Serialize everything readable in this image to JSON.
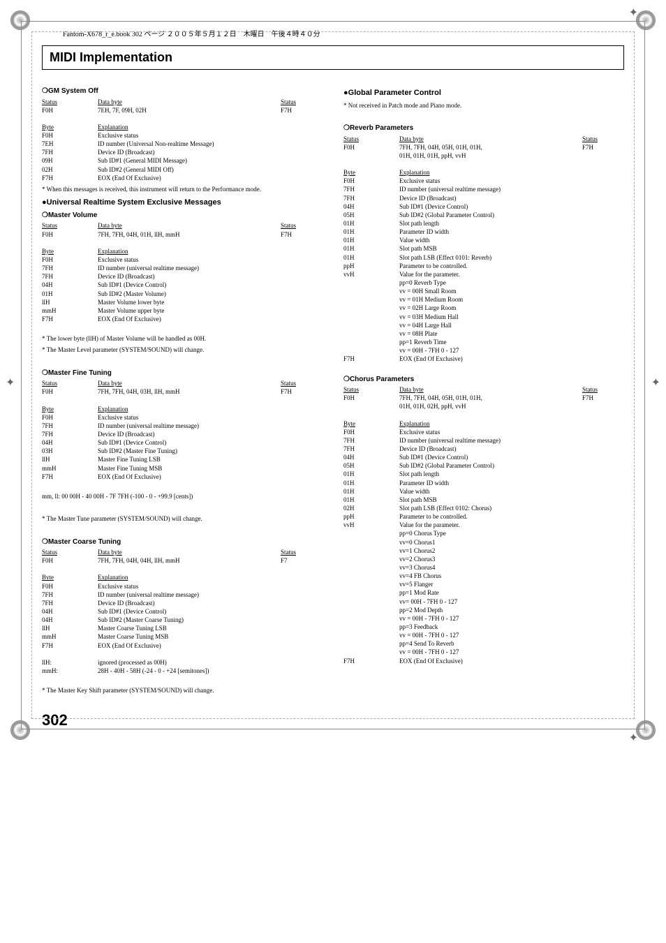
{
  "header_line": "Fantom-X678_r_e.book 302 ページ ２００５年５月１２日　木曜日　午後４時４０分",
  "main_title": "MIDI Implementation",
  "page_number": "302",
  "headers": {
    "status": "Status",
    "data_byte": "Data byte",
    "byte": "Byte",
    "explanation": "Explanation"
  },
  "left": {
    "gm_off": {
      "title": "❍GM System Off",
      "status_row": {
        "c1": "F0H",
        "c2": "7EH, 7F, 09H, 02H",
        "c3": "F7H"
      },
      "bytes": [
        {
          "c1": "F0H",
          "c2": "Exclusive status"
        },
        {
          "c1": "7EH",
          "c2": "ID number (Universal Non-realtime Message)"
        },
        {
          "c1": "7FH",
          "c2": "Device ID (Broadcast)"
        },
        {
          "c1": "09H",
          "c2": "Sub ID#1 (General MIDI Message)"
        },
        {
          "c1": "02H",
          "c2": "Sub ID#2 (General MIDI Off)"
        },
        {
          "c1": "F7H",
          "c2": "EOX (End Of Exclusive)"
        }
      ],
      "note": "*   When this messages is received, this instrument will return to the Performance mode."
    },
    "urse_title": "●Universal Realtime System Exclusive Messages",
    "mvol": {
      "title": "❍Master Volume",
      "status_row": {
        "c1": "F0H",
        "c2": "7FH, 7FH, 04H, 01H, llH, mmH",
        "c3": "F7H"
      },
      "bytes": [
        {
          "c1": "F0H",
          "c2": "Exclusive status"
        },
        {
          "c1": "7FH",
          "c2": "ID number (universal realtime message)"
        },
        {
          "c1": "7FH",
          "c2": "Device ID (Broadcast)"
        },
        {
          "c1": "04H",
          "c2": "Sub ID#1 (Device Control)"
        },
        {
          "c1": "01H",
          "c2": "Sub ID#2 (Master Volume)"
        },
        {
          "c1": "llH",
          "c2": "Master Volume lower byte"
        },
        {
          "c1": "mmH",
          "c2": "Master Volume upper byte"
        },
        {
          "c1": "F7H",
          "c2": "EOX (End Of Exclusive)"
        }
      ],
      "notes": [
        "*   The lower byte (llH) of Master Volume will be handled as 00H.",
        "*   The Master Level parameter (SYSTEM/SOUND) will change."
      ]
    },
    "mft": {
      "title": "❍Master Fine Tuning",
      "status_row": {
        "c1": "F0H",
        "c2": "7FH, 7FH, 04H, 03H, llH, mmH",
        "c3": "F7H"
      },
      "bytes": [
        {
          "c1": "F0H",
          "c2": "Exclusive status"
        },
        {
          "c1": "7FH",
          "c2": "ID number (universal realtime message)"
        },
        {
          "c1": "7FH",
          "c2": "Device ID (Broadcast)"
        },
        {
          "c1": "04H",
          "c2": "Sub ID#1 (Device Control)"
        },
        {
          "c1": "03H",
          "c2": "Sub ID#2 (Master Fine Tuning)"
        },
        {
          "c1": "llH",
          "c2": "Master Fine Tuning LSB"
        },
        {
          "c1": "mmH",
          "c2": "Master Fine Tuning MSB"
        },
        {
          "c1": "F7H",
          "c2": "EOX (End Of Exclusive)"
        }
      ],
      "range": "mm, ll: 00 00H - 40 00H - 7F 7FH (-100 - 0 - +99.9 [cents])",
      "note": "*   The Master Tune parameter (SYSTEM/SOUND) will change."
    },
    "mct": {
      "title": "❍Master Coarse Tuning",
      "status_row": {
        "c1": "F0H",
        "c2": "7FH, 7FH, 04H, 04H, llH, mmH",
        "c3": "F7"
      },
      "bytes": [
        {
          "c1": "F0H",
          "c2": "Exclusive status"
        },
        {
          "c1": "7FH",
          "c2": "ID number (universal realtime message)"
        },
        {
          "c1": "7FH",
          "c2": "Device ID (Broadcast)"
        },
        {
          "c1": "04H",
          "c2": "Sub ID#1 (Device Control)"
        },
        {
          "c1": "04H",
          "c2": "Sub ID#2 (Master Coarse Tuning)"
        },
        {
          "c1": "llH",
          "c2": "Master Coarse Tuning LSB"
        },
        {
          "c1": "mmH",
          "c2": "Master Coarse Tuning MSB"
        },
        {
          "c1": "F7H",
          "c2": "EOX (End Of Exclusive)"
        }
      ],
      "extras": [
        {
          "c1": "llH:",
          "c2": "ignored (processed as 00H)"
        },
        {
          "c1": "mmH:",
          "c2": "28H - 40H - 58H (-24 - 0 - +24 [semitones])"
        }
      ],
      "note": "*   The Master Key Shift parameter (SYSTEM/SOUND) will change."
    }
  },
  "right": {
    "gpc_title": "●Global Parameter Control",
    "gpc_note": "*   Not received in Patch mode and Piano mode.",
    "reverb": {
      "title": "❍Reverb Parameters",
      "status_row": {
        "c1": "F0H",
        "c2a": "7FH, 7FH, 04H, 05H, 01H, 01H,",
        "c2b": "01H, 01H, 01H, ppH, vvH",
        "c3": "F7H"
      },
      "bytes": [
        {
          "c1": "F0H",
          "c2": "Exclusive status"
        },
        {
          "c1": "7FH",
          "c2": "ID number (universal realtime message)"
        },
        {
          "c1": "7FH",
          "c2": "Device ID (Broadcast)"
        },
        {
          "c1": "04H",
          "c2": "Sub ID#1 (Device Control)"
        },
        {
          "c1": "05H",
          "c2": "Sub ID#2 (Global Parameter Control)"
        },
        {
          "c1": "01H",
          "c2": "Slot path length"
        },
        {
          "c1": "01H",
          "c2": "Parameter ID width"
        },
        {
          "c1": "01H",
          "c2": "Value width"
        },
        {
          "c1": "01H",
          "c2": "Slot path MSB"
        },
        {
          "c1": "01H",
          "c2": "Slot path LSB (Effect 0101: Reverb)"
        },
        {
          "c1": "ppH",
          "c2": "Parameter to be controlled."
        },
        {
          "c1": "vvH",
          "c2": "Value for the parameter."
        }
      ],
      "vals": [
        "pp=0 Reverb Type",
        "vv = 00H Small Room",
        "vv = 01H Medium Room",
        "vv = 02H Large Room",
        "vv = 03H Medium Hall",
        "vv = 04H Large Hall",
        "vv = 08H Plate",
        "pp=1 Reverb Time",
        "vv = 00H - 7FH 0 - 127"
      ],
      "end": {
        "c1": "F7H",
        "c2": "EOX (End Of Exclusive)"
      }
    },
    "chorus": {
      "title": "❍Chorus Parameters",
      "status_row": {
        "c1": "F0H",
        "c2a": "7FH, 7FH, 04H, 05H, 01H, 01H,",
        "c2b": "01H, 01H, 02H, ppH, vvH",
        "c3": "F7H"
      },
      "bytes": [
        {
          "c1": "F0H",
          "c2": "Exclusive status"
        },
        {
          "c1": "7FH",
          "c2": "ID number (universal realtime message)"
        },
        {
          "c1": "7FH",
          "c2": "Device ID (Broadcast)"
        },
        {
          "c1": "04H",
          "c2": "Sub ID#1 (Device Control)"
        },
        {
          "c1": "05H",
          "c2": "Sub ID#2 (Global Parameter Control)"
        },
        {
          "c1": "01H",
          "c2": "Slot path length"
        },
        {
          "c1": "01H",
          "c2": "Parameter ID width"
        },
        {
          "c1": "01H",
          "c2": "Value width"
        },
        {
          "c1": "01H",
          "c2": "Slot path MSB"
        },
        {
          "c1": "02H",
          "c2": "Slot path LSB (Effect 0102: Chorus)"
        },
        {
          "c1": "ppH",
          "c2": "Parameter to be controlled."
        },
        {
          "c1": "vvH",
          "c2": "Value for the parameter."
        }
      ],
      "vals": [
        "pp=0 Chorus Type",
        "vv=0 Chorus1",
        "vv=1 Chorus2",
        "vv=2 Chorus3",
        "vv=3 Chorus4",
        "vv=4 FB Chorus",
        "vv=5 Flanger",
        "pp=1 Mod Rate",
        "vv= 00H - 7FH 0 - 127",
        "pp=2 Mod Depth",
        "vv = 00H - 7FH 0 - 127",
        "pp=3 Feedback",
        "vv = 00H - 7FH 0 - 127",
        "pp=4 Send To Reverb",
        "vv = 00H - 7FH 0 - 127"
      ],
      "end": {
        "c1": "F7H",
        "c2": "EOX (End Of Exclusive)"
      }
    }
  }
}
